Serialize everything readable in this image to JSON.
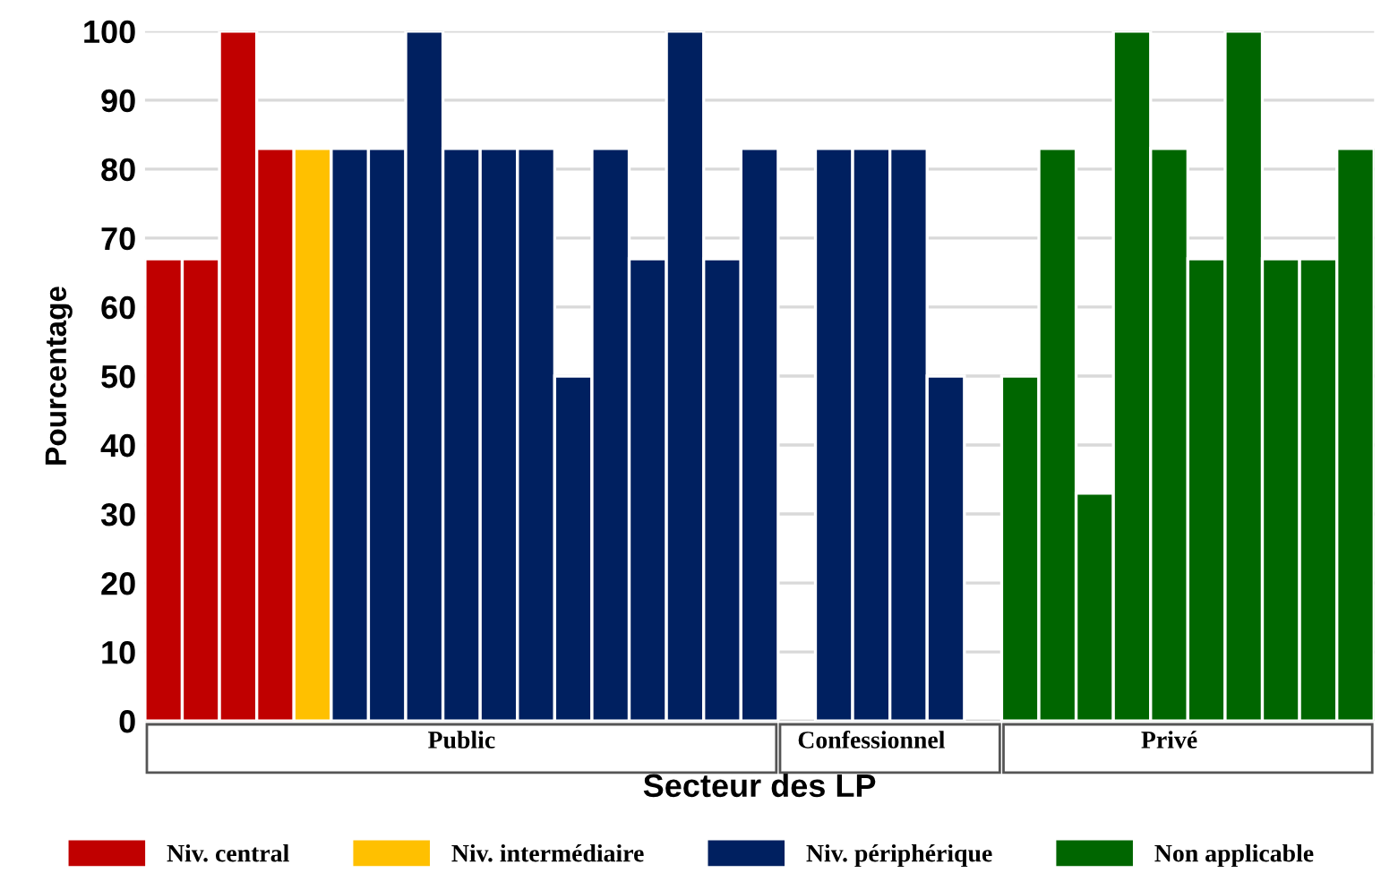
{
  "chart_data": {
    "type": "bar",
    "xlabel": "Secteur des LP",
    "ylabel": "Pourcentage",
    "categories": [
      null,
      null,
      null,
      null,
      null,
      null,
      null,
      null,
      "Public",
      null,
      null,
      null,
      null,
      null,
      null,
      null,
      null,
      null,
      null,
      "Confessionnel",
      null,
      null,
      null,
      null,
      null,
      null,
      null,
      "Privé",
      null,
      null,
      null,
      null,
      null
    ],
    "series": [
      {
        "name": "Niv. central",
        "color": "#c00000",
        "values": [
          67,
          67,
          100,
          83,
          null,
          null,
          null,
          null,
          null,
          null,
          null,
          null,
          null,
          null,
          null,
          null,
          null,
          null,
          null,
          null,
          null,
          null,
          null,
          null,
          null,
          null,
          null,
          null,
          null,
          null,
          null,
          null,
          null
        ]
      },
      {
        "name": "Niv. intermédiaire",
        "color": "#ffc000",
        "values": [
          null,
          null,
          null,
          null,
          83,
          null,
          null,
          null,
          null,
          null,
          null,
          null,
          null,
          null,
          null,
          null,
          null,
          null,
          null,
          null,
          null,
          null,
          null,
          null,
          null,
          null,
          null,
          null,
          null,
          null,
          null,
          null,
          null
        ]
      },
      {
        "name": "Niv. périphérique",
        "color": "#002060",
        "values": [
          null,
          null,
          null,
          null,
          null,
          83,
          83,
          100,
          83,
          83,
          83,
          50,
          83,
          67,
          100,
          67,
          83,
          null,
          83,
          83,
          83,
          50,
          null,
          null,
          null,
          null,
          null,
          null,
          null,
          null,
          null,
          null,
          null
        ]
      },
      {
        "name": "Non applicable",
        "color": "#006600",
        "values": [
          null,
          null,
          null,
          null,
          null,
          null,
          null,
          null,
          null,
          null,
          null,
          null,
          null,
          null,
          null,
          null,
          null,
          null,
          null,
          null,
          null,
          null,
          null,
          50,
          83,
          33,
          100,
          83,
          67,
          100,
          67,
          67,
          83
        ]
      }
    ],
    "ylim": [
      0,
      100
    ],
    "yticks": [
      0,
      10,
      20,
      30,
      40,
      50,
      60,
      70,
      80,
      90,
      100
    ],
    "grid": "y",
    "legend": "bottom"
  }
}
